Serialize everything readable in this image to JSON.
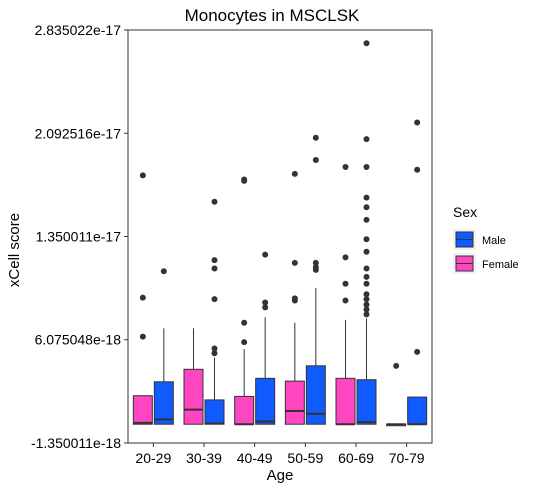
{
  "chart_data": {
    "type": "boxplot",
    "title": "Monocytes in MSCLSK",
    "xlabel": "Age",
    "ylabel": "xCell score",
    "ylim": [
      -1.350011e-18,
      2.835022e-17
    ],
    "yticks": [
      -1.350011e-18,
      6.075048e-18,
      1.350011e-17,
      2.092516e-17,
      2.835022e-17
    ],
    "ytick_labels": [
      "-1.350011e-18",
      "6.075048e-18",
      "1.350011e-17",
      "2.092516e-17",
      "2.835022e-17"
    ],
    "grid": false,
    "legend": {
      "title": "Sex",
      "placement": "right",
      "entries": [
        "Male",
        "Female"
      ]
    },
    "colors": {
      "Male": "#0f5bff",
      "Female": "#ff45c0",
      "outlier": "#333333",
      "outline": "#333333"
    },
    "categories": [
      "20-29",
      "30-39",
      "40-49",
      "50-59",
      "60-69",
      "70-79"
    ],
    "series": [
      {
        "name": "Female",
        "boxes": [
          {
            "category": "20-29",
            "min": 0,
            "q1": 0,
            "median": 1e-19,
            "q3": 2.05e-18,
            "max": 2.05e-18,
            "outliers": [
              6.3e-18,
              9.1e-18,
              1.79e-17
            ]
          },
          {
            "category": "30-39",
            "min": 0,
            "q1": 0,
            "median": 1.05e-18,
            "q3": 3.95e-18,
            "max": 6.9e-18,
            "outliers": []
          },
          {
            "category": "40-49",
            "min": 0,
            "q1": 0,
            "median": 0,
            "q3": 2e-18,
            "max": 5.4e-18,
            "outliers": [
              5.9e-18,
              7.3e-18,
              1.75e-17,
              1.76e-17
            ]
          },
          {
            "category": "50-59",
            "min": 0,
            "q1": 0,
            "median": 9.5e-19,
            "q3": 3.1e-18,
            "max": 7.3e-18,
            "outliers": [
              8.9e-18,
              9.05e-18,
              1.16e-17,
              1.8e-17
            ]
          },
          {
            "category": "60-69",
            "min": 0,
            "q1": 0,
            "median": 0,
            "q3": 3.3e-18,
            "max": 7.5e-18,
            "outliers": [
              8.9e-18,
              1.01e-17,
              1.2e-17,
              1.85e-17
            ]
          },
          {
            "category": "70-79",
            "min": 0,
            "q1": 0,
            "median": 0,
            "q3": 0,
            "max": 0,
            "outliers": [
              4.2e-18
            ]
          }
        ]
      },
      {
        "name": "Male",
        "boxes": [
          {
            "category": "20-29",
            "min": 0,
            "q1": 0,
            "median": 3.5e-19,
            "q3": 3.05e-18,
            "max": 6.9e-18,
            "outliers": [
              1.1e-17
            ]
          },
          {
            "category": "30-39",
            "min": 0,
            "q1": 0,
            "median": 5e-20,
            "q3": 1.75e-18,
            "max": 4.8e-18,
            "outliers": [
              5.1e-18,
              5.45e-18,
              9e-18,
              1.12e-17,
              1.18e-17,
              1.6e-17
            ]
          },
          {
            "category": "40-49",
            "min": 0,
            "q1": 0,
            "median": 2e-19,
            "q3": 3.3e-18,
            "max": 7.7e-18,
            "outliers": [
              8.4e-18,
              8.75e-18,
              1.22e-17
            ]
          },
          {
            "category": "50-59",
            "min": 0,
            "q1": 0,
            "median": 7.5e-19,
            "q3": 4.2e-18,
            "max": 9.8e-18,
            "outliers": [
              1.11e-17,
              1.13e-17,
              1.16e-17,
              1.9e-17,
              2.06e-17
            ]
          },
          {
            "category": "60-69",
            "min": 0,
            "q1": 0,
            "median": 1.5e-19,
            "q3": 3.2e-18,
            "max": 7.6e-18,
            "outliers": [
              7.9e-18,
              8.25e-18,
              8.6e-18,
              9e-18,
              9.35e-18,
              1.01e-17,
              1.06e-17,
              1.12e-17,
              1.24e-17,
              1.33e-17,
              1.47e-17,
              1.56e-17,
              1.63e-17,
              1.85e-17,
              2.05e-17,
              2.74e-17
            ]
          },
          {
            "category": "70-79",
            "min": 0,
            "q1": 0,
            "median": 0,
            "q3": 1.95e-18,
            "max": 1.95e-18,
            "outliers": [
              5.2e-18,
              1.83e-17,
              2.17e-17
            ]
          }
        ]
      }
    ]
  }
}
